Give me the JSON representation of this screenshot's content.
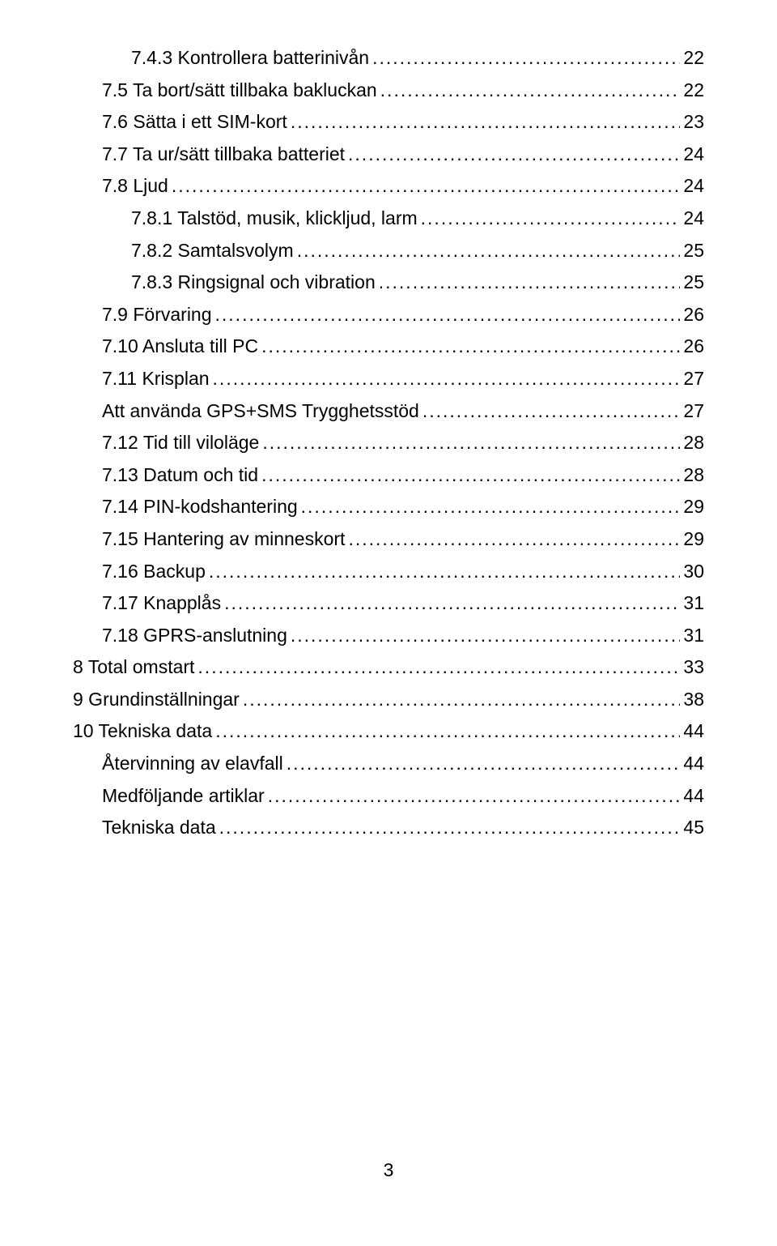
{
  "toc": {
    "entries": [
      {
        "indent": 2,
        "label": "7.4.3 Kontrollera batterinivån",
        "page": "22"
      },
      {
        "indent": 1,
        "label": "7.5 Ta bort/sätt tillbaka bakluckan",
        "page": "22"
      },
      {
        "indent": 1,
        "label": "7.6 Sätta i ett SIM-kort",
        "page": "23"
      },
      {
        "indent": 1,
        "label": "7.7 Ta ur/sätt tillbaka batteriet",
        "page": "24"
      },
      {
        "indent": 1,
        "label": "7.8 Ljud",
        "page": "24"
      },
      {
        "indent": 2,
        "label": "7.8.1 Talstöd, musik, klickljud, larm",
        "page": "24"
      },
      {
        "indent": 2,
        "label": "7.8.2 Samtalsvolym",
        "page": "25"
      },
      {
        "indent": 2,
        "label": "7.8.3 Ringsignal och vibration",
        "page": "25"
      },
      {
        "indent": 1,
        "label": "7.9 Förvaring",
        "page": "26"
      },
      {
        "indent": 1,
        "label": "7.10 Ansluta till PC",
        "page": "26"
      },
      {
        "indent": 1,
        "label": "7.11 Krisplan",
        "page": "27"
      },
      {
        "indent": 1,
        "label": "Att använda GPS+SMS Trygghetsstöd",
        "page": "27"
      },
      {
        "indent": 1,
        "label": "7.12 Tid till viloläge",
        "page": "28"
      },
      {
        "indent": 1,
        "label": "7.13 Datum och tid",
        "page": "28"
      },
      {
        "indent": 1,
        "label": "7.14 PIN-kodshantering",
        "page": "29"
      },
      {
        "indent": 1,
        "label": "7.15 Hantering av minneskort",
        "page": "29"
      },
      {
        "indent": 1,
        "label": "7.16 Backup",
        "page": "30"
      },
      {
        "indent": 1,
        "label": "7.17 Knapplås",
        "page": "31"
      },
      {
        "indent": 1,
        "label": "7.18 GPRS-anslutning",
        "page": "31"
      },
      {
        "indent": 0,
        "label": "8 Total omstart",
        "page": "33"
      },
      {
        "indent": 0,
        "label": "9 Grundinställningar",
        "page": "38"
      },
      {
        "indent": 0,
        "label": "10 Tekniska data",
        "page": "44"
      },
      {
        "indent": 1,
        "label": "Återvinning av elavfall",
        "page": "44"
      },
      {
        "indent": 1,
        "label": "Medföljande artiklar",
        "page": "44"
      },
      {
        "indent": 1,
        "label": "Tekniska data",
        "page": "45"
      }
    ]
  },
  "pageNumber": "3",
  "style": {
    "background": "#ffffff",
    "text_color": "#000000",
    "font_size_pt": 17,
    "font_family": "Arial"
  }
}
